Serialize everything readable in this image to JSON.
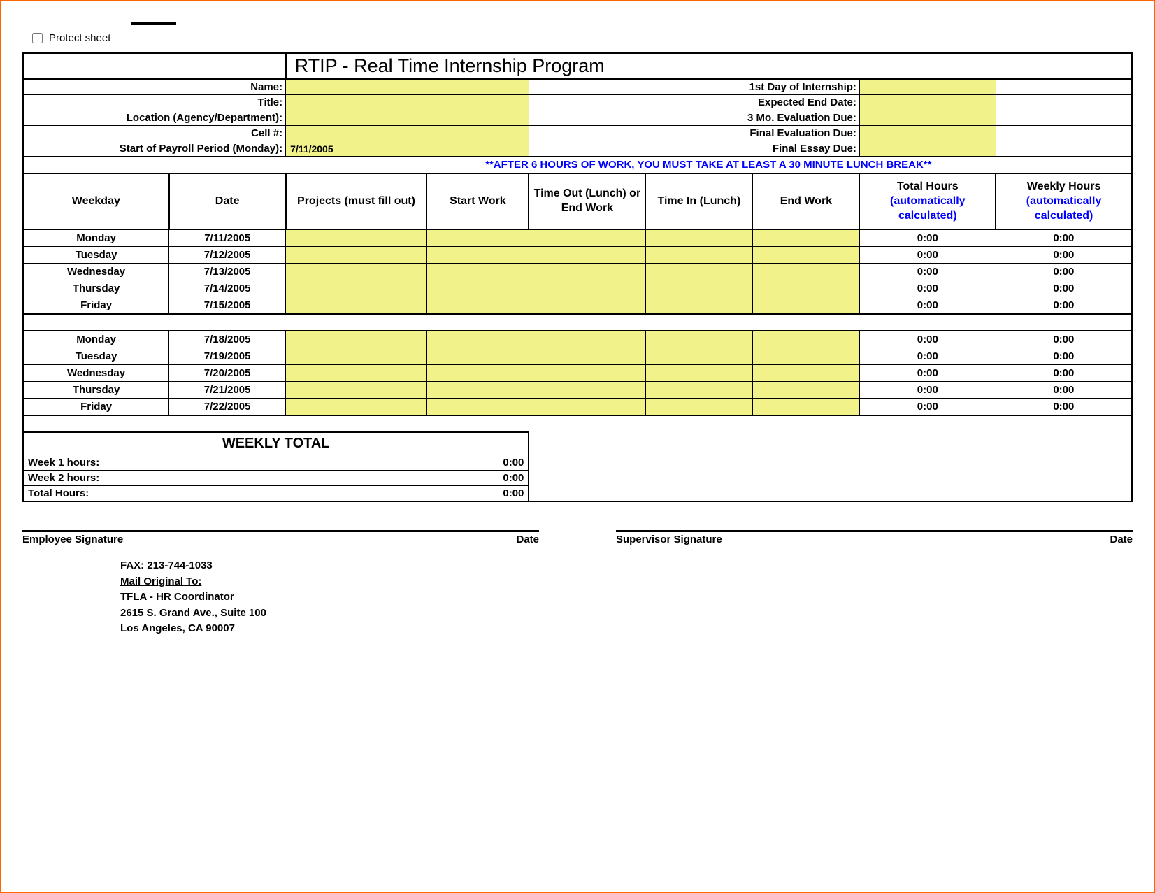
{
  "protect_label": "Protect sheet",
  "title": "RTIP - Real Time Internship Program",
  "colors": {
    "highlight": "#f2f28b",
    "auto_calc_text": "#0000ff",
    "notice_text": "#0000ff",
    "page_border": "#ff6600",
    "cell_border": "#000000",
    "background": "#ffffff"
  },
  "header_fields": {
    "left": [
      {
        "label": "Name:",
        "value": ""
      },
      {
        "label": "Title:",
        "value": ""
      },
      {
        "label": "Location (Agency/Department):",
        "value": ""
      },
      {
        "label": "Cell #:",
        "value": ""
      },
      {
        "label": "Start of Payroll Period (Monday):",
        "value": "7/11/2005"
      }
    ],
    "right": [
      {
        "label": "1st Day of Internship:",
        "value": ""
      },
      {
        "label": "Expected End Date:",
        "value": ""
      },
      {
        "label": "3 Mo. Evaluation Due:",
        "value": ""
      },
      {
        "label": "Final Evaluation Due:",
        "value": ""
      },
      {
        "label": "Final Essay Due:",
        "value": ""
      }
    ]
  },
  "notice": "**AFTER 6 HOURS OF WORK, YOU MUST TAKE AT LEAST A 30 MINUTE LUNCH BREAK**",
  "columns": {
    "weekday": "Weekday",
    "date": "Date",
    "projects": "Projects (must fill out)",
    "start_work": "Start Work",
    "time_out": "Time Out (Lunch) or End Work",
    "time_in": "Time In (Lunch)",
    "end_work": "End Work",
    "total_hours_top": "Total Hours",
    "weekly_hours_top": "Weekly Hours",
    "auto_calc": "(automatically calculated)"
  },
  "week1": [
    {
      "weekday": "Monday",
      "date": "7/11/2005",
      "total": "0:00",
      "weekly": "0:00"
    },
    {
      "weekday": "Tuesday",
      "date": "7/12/2005",
      "total": "0:00",
      "weekly": "0:00"
    },
    {
      "weekday": "Wednesday",
      "date": "7/13/2005",
      "total": "0:00",
      "weekly": "0:00"
    },
    {
      "weekday": "Thursday",
      "date": "7/14/2005",
      "total": "0:00",
      "weekly": "0:00"
    },
    {
      "weekday": "Friday",
      "date": "7/15/2005",
      "total": "0:00",
      "weekly": "0:00"
    }
  ],
  "week2": [
    {
      "weekday": "Monday",
      "date": "7/18/2005",
      "total": "0:00",
      "weekly": "0:00"
    },
    {
      "weekday": "Tuesday",
      "date": "7/19/2005",
      "total": "0:00",
      "weekly": "0:00"
    },
    {
      "weekday": "Wednesday",
      "date": "7/20/2005",
      "total": "0:00",
      "weekly": "0:00"
    },
    {
      "weekday": "Thursday",
      "date": "7/21/2005",
      "total": "0:00",
      "weekly": "0:00"
    },
    {
      "weekday": "Friday",
      "date": "7/22/2005",
      "total": "0:00",
      "weekly": "0:00"
    }
  ],
  "weekly_total": {
    "title": "WEEKLY TOTAL",
    "week1_label": "Week 1 hours:",
    "week1_value": "0:00",
    "week2_label": "Week 2 hours:",
    "week2_value": "0:00",
    "total_label": "Total Hours:",
    "total_value": "0:00"
  },
  "signatures": {
    "employee": "Employee Signature",
    "supervisor": "Supervisor Signature",
    "date": "Date"
  },
  "contact": {
    "fax_label": "FAX:  213-744-1033",
    "mail_label": "Mail Original To:",
    "line1": "TFLA - HR Coordinator",
    "line2": "2615 S. Grand Ave., Suite 100",
    "line3": "Los Angeles, CA 90007"
  }
}
